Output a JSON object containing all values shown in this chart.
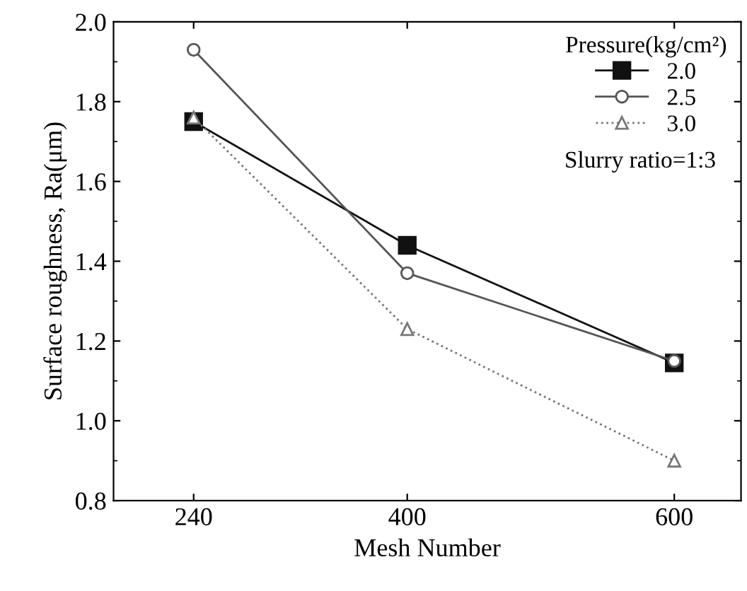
{
  "chart_data": {
    "type": "line",
    "xlabel": "Mesh Number",
    "ylabel": "Surface roughness, Ra(μm)",
    "legend_title": "Pressure(kg/cm²)",
    "annotations": [
      "Slurry ratio=1:3"
    ],
    "x": [
      240,
      400,
      600
    ],
    "series": [
      {
        "name": "2.0",
        "color": "#111111",
        "values": [
          1.75,
          1.44,
          1.145
        ],
        "marker": "square",
        "line_style": "solid"
      },
      {
        "name": "2.5",
        "color": "#555555",
        "values": [
          1.93,
          1.37,
          1.15
        ],
        "marker": "circle",
        "line_style": "solid"
      },
      {
        "name": "3.0",
        "color": "#777777",
        "values": [
          1.76,
          1.23,
          0.9
        ],
        "marker": "triangle",
        "line_style": "dotted"
      }
    ],
    "xlim": [
      180,
      650
    ],
    "xticks": [
      240,
      400,
      600
    ],
    "ylim": [
      0.8,
      2.0
    ],
    "yticks": [
      0.8,
      {
        "value": 1,
        "label": "1.0"
      },
      1.2,
      1.4,
      1.6,
      1.8,
      {
        "value": 2,
        "label": "2.0"
      }
    ],
    "legend": "top right",
    "grid": false
  }
}
